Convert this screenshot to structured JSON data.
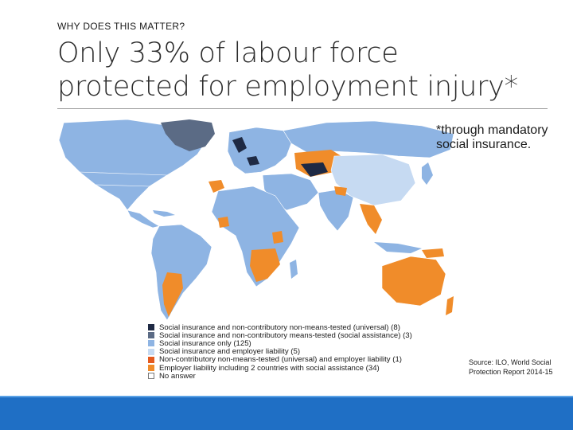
{
  "slide": {
    "kicker": "WHY DOES THIS MATTER?",
    "title": "Only 33% of labour force protected for employment injury*",
    "note": "*through mandatory social insurance.",
    "source": "Source: ILO, World Social Protection Report 2014-15"
  },
  "legend": {
    "items": [
      {
        "label": "Social insurance and non-contributory non-means-tested (universal) (8)",
        "color": "#1f2a44"
      },
      {
        "label": "Social insurance and non-contributory means-tested (social assistance) (3)",
        "color": "#5b6b85"
      },
      {
        "label": "Social insurance only (125)",
        "color": "#8eb4e3"
      },
      {
        "label": "Social insurance and employer liability (5)",
        "color": "#c6daf2"
      },
      {
        "label": "Non-contributory non-means-tested (universal) and employer liability (1)",
        "color": "#e45a1f"
      },
      {
        "label": "Employer liability including 2 countries with social assistance (34)",
        "color": "#f08c2a"
      },
      {
        "label": "No answer",
        "color": "#ffffff"
      }
    ]
  },
  "colors": {
    "social_insurance_only": "#8eb4e3",
    "employer_liability": "#f08c2a",
    "universal": "#1f2a44",
    "means_tested": "#5b6b85",
    "si_employer": "#c6daf2",
    "footer": "#1f6fc5"
  }
}
